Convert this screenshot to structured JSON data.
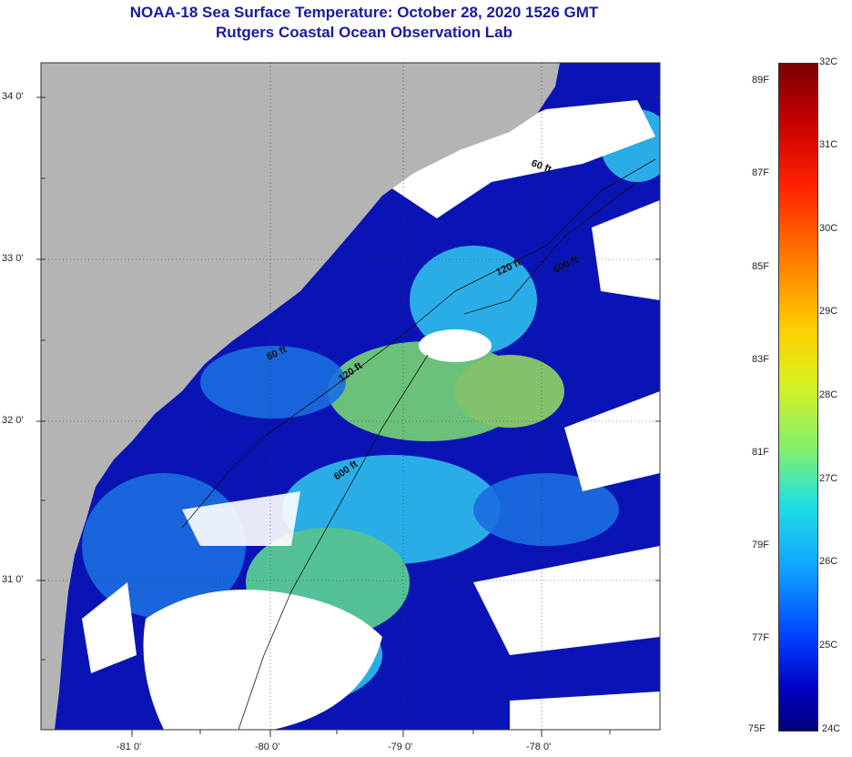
{
  "title": {
    "line1": "NOAA-18 Sea Surface Temperature:  October 28, 2020 1526 GMT",
    "line2": "Rutgers Coastal Ocean Observation Lab"
  },
  "map": {
    "lat_labels": [
      "34 0'",
      "33 0'",
      "32 0'",
      "31 0'"
    ],
    "lon_labels": [
      "-81 0'",
      "-80 0'",
      "-79 0'",
      "-78 0'"
    ],
    "isobaths": [
      "60 ft",
      "120 ft",
      "60 ft",
      "120 ft",
      "600 ft",
      "600 ft"
    ],
    "colors": {
      "land": "#b4b4b4",
      "cloud": "#ffffff",
      "cold_water": "#0a14b4",
      "warm_water": "#30c8f0"
    }
  },
  "colorbar": {
    "celsius": [
      "32C",
      "31C",
      "30C",
      "29C",
      "28C",
      "27C",
      "26C",
      "25C",
      "24C"
    ],
    "fahrenheit": [
      "89F",
      "87F",
      "85F",
      "83F",
      "81F",
      "79F",
      "77F",
      "75F"
    ]
  }
}
